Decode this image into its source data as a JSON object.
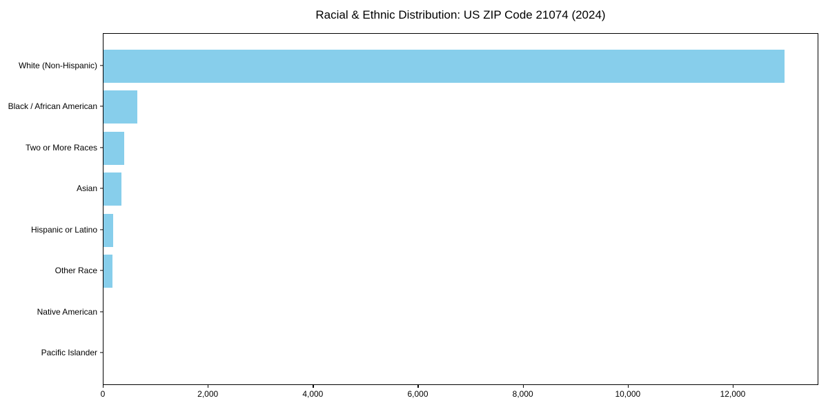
{
  "chart_data": {
    "type": "bar",
    "orientation": "horizontal",
    "title": "Racial & Ethnic Distribution: US ZIP Code 21074 (2024)",
    "xlabel": "",
    "ylabel": "",
    "categories": [
      "White (Non-Hispanic)",
      "Black / African American",
      "Two or More Races",
      "Asian",
      "Hispanic or Latino",
      "Other Race",
      "Native American",
      "Pacific Islander"
    ],
    "values": [
      12975,
      650,
      400,
      340,
      190,
      175,
      0,
      0
    ],
    "xlim": [
      0,
      13630
    ],
    "xticks": [
      0,
      2000,
      4000,
      6000,
      8000,
      10000,
      12000
    ],
    "xtick_labels": [
      "0",
      "2,000",
      "4,000",
      "6,000",
      "8,000",
      "10,000",
      "12,000"
    ],
    "bar_color": "#87CEEB",
    "grid": false,
    "legend": null
  }
}
